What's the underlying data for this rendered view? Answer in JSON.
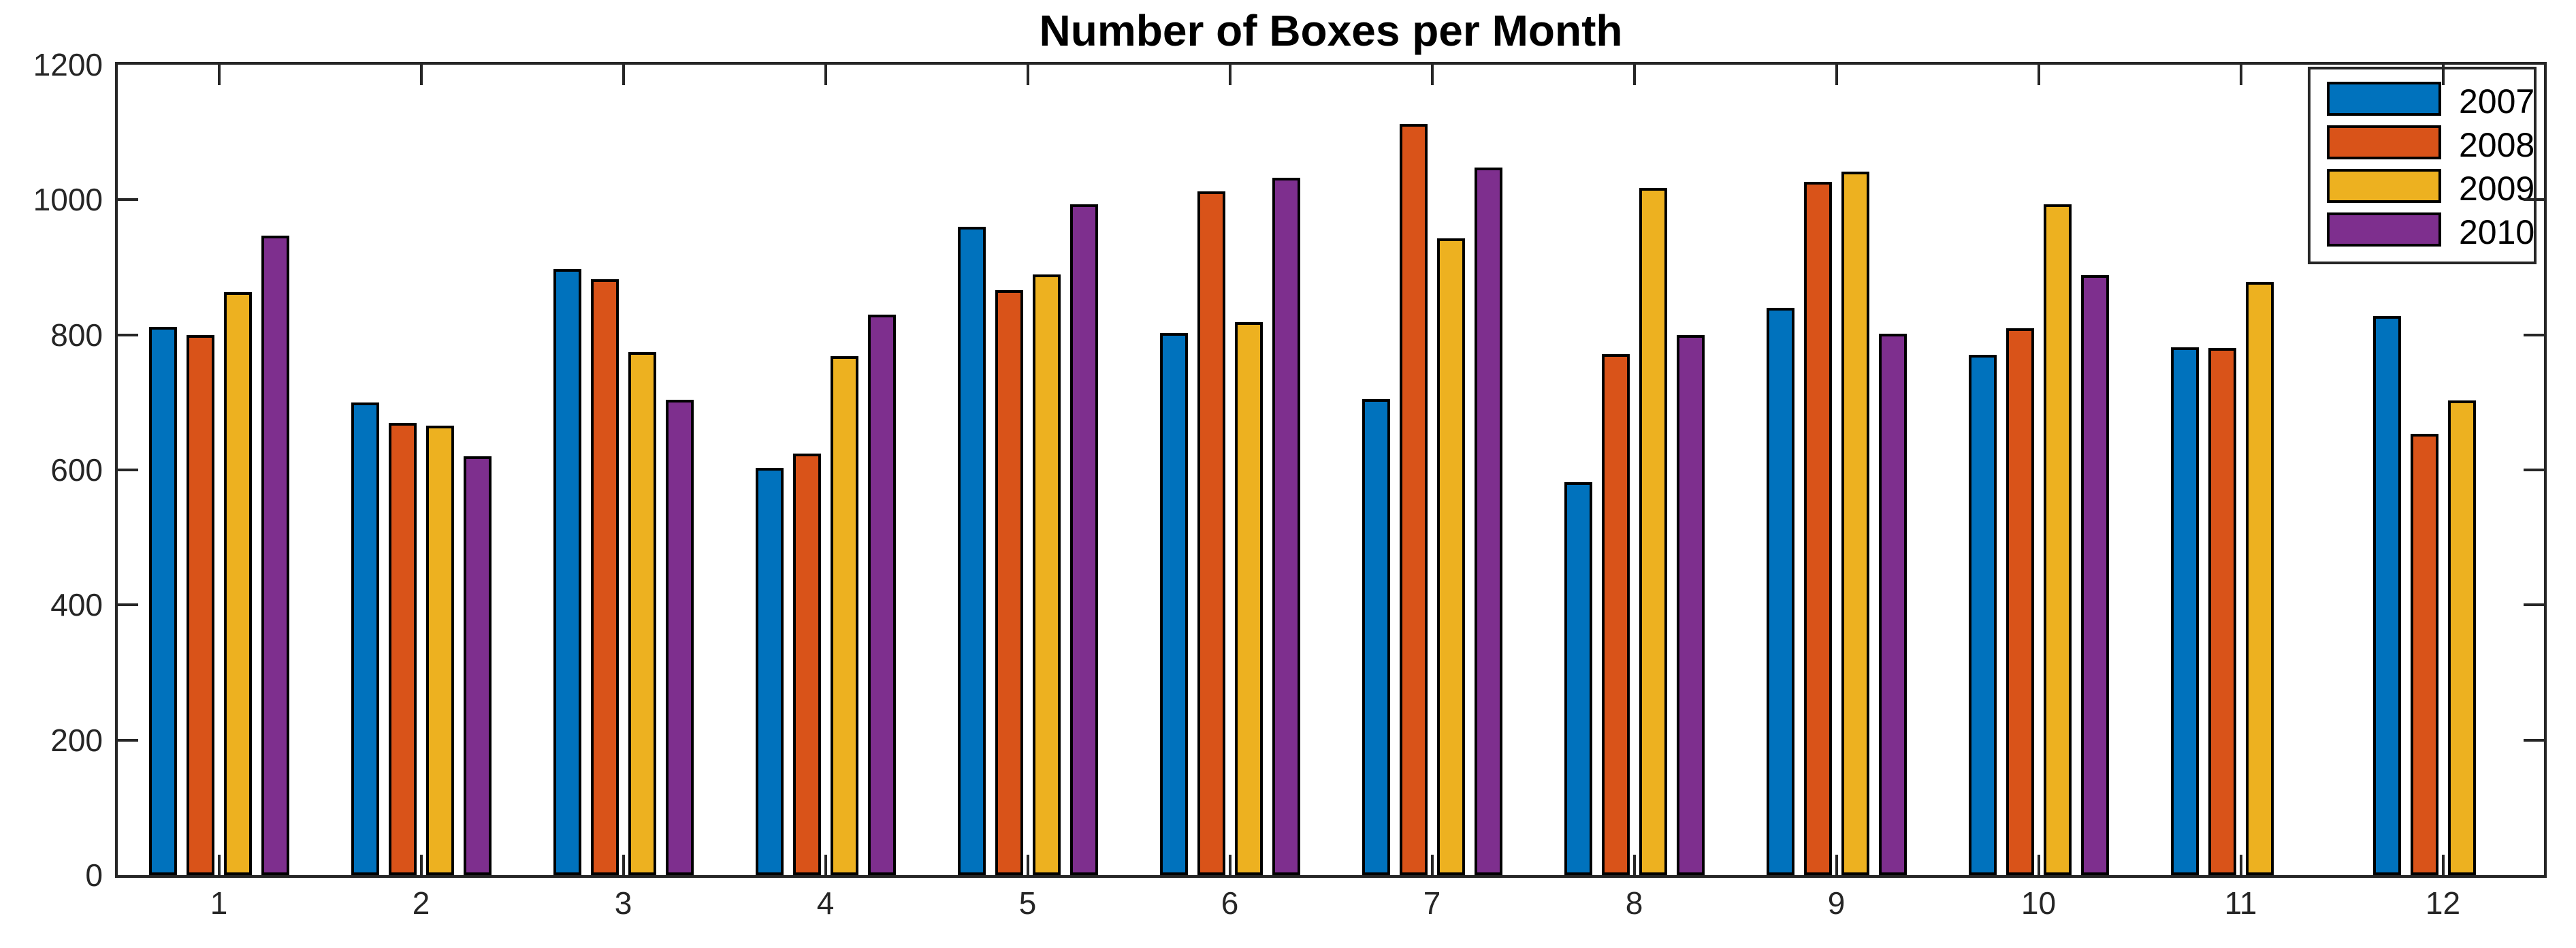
{
  "chart_data": {
    "type": "bar",
    "title": "Number of Boxes per Month",
    "xlabel": "",
    "ylabel": "",
    "categories": [
      "1",
      "2",
      "3",
      "4",
      "5",
      "6",
      "7",
      "8",
      "9",
      "10",
      "11",
      "12"
    ],
    "series": [
      {
        "name": "2007",
        "color": "#0072BD",
        "values": [
          812,
          700,
          897,
          603,
          960,
          803,
          705,
          582,
          840,
          770,
          782,
          828
        ]
      },
      {
        "name": "2008",
        "color": "#D95319",
        "values": [
          800,
          670,
          882,
          624,
          866,
          1012,
          1112,
          771,
          1027,
          810,
          781,
          653
        ]
      },
      {
        "name": "2009",
        "color": "#EDB120",
        "values": [
          863,
          666,
          774,
          768,
          889,
          819,
          943,
          1017,
          1042,
          993,
          878,
          703
        ]
      },
      {
        "name": "2010",
        "color": "#7E2F8E",
        "values": [
          947,
          620,
          704,
          830,
          993,
          1033,
          1048,
          800,
          802,
          888,
          0,
          0
        ]
      }
    ],
    "ylim": [
      0,
      1200
    ],
    "yticks": [
      0,
      200,
      400,
      600,
      800,
      1000,
      1200
    ],
    "grid": false,
    "legend_position": "northeast",
    "bar_edge_color": "#000000",
    "axis_color": "#262626"
  }
}
